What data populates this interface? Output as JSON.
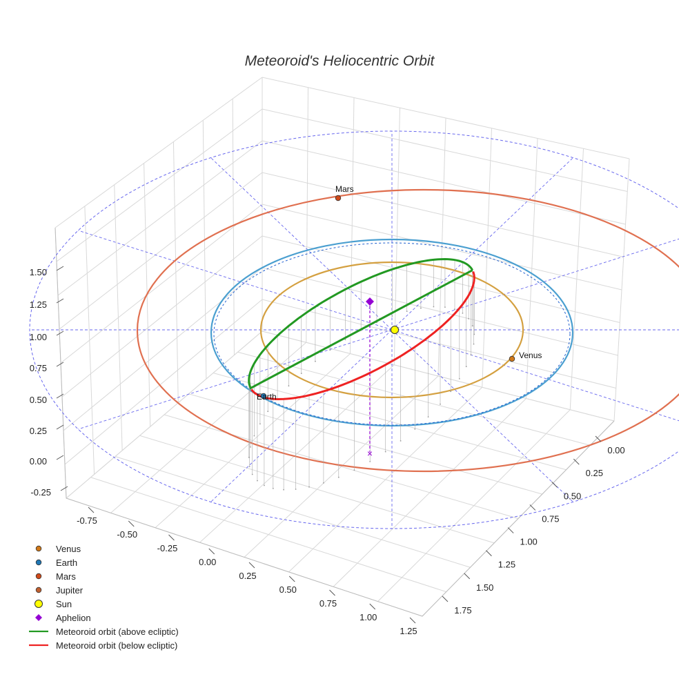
{
  "chart_data": {
    "type": "scatter3d",
    "title": "Meteoroid's Heliocentric Orbit",
    "x_ticks": [
      "-0.75",
      "-0.50",
      "-0.25",
      "0.00",
      "0.25",
      "0.50",
      "0.75",
      "1.00",
      "1.25"
    ],
    "y_ticks": [
      "0.00",
      "0.25",
      "0.50",
      "0.75",
      "1.00",
      "1.25",
      "1.50",
      "1.75"
    ],
    "z_ticks": [
      "-0.25",
      "0.00",
      "0.25",
      "0.50",
      "0.75",
      "1.00",
      "1.25",
      "1.50"
    ],
    "planet_orbits": [
      {
        "name": "Venus",
        "radius_au": 0.72,
        "color": "#d4a040"
      },
      {
        "name": "Earth",
        "radius_au": 1.0,
        "color": "#4a9fd0"
      },
      {
        "name": "Mars",
        "radius_au": 1.52,
        "color": "#e07050"
      }
    ],
    "reference_circle": {
      "color": "#6666ee",
      "style": "dashed"
    },
    "planets": [
      {
        "name": "Venus",
        "label": "Venus",
        "color": "#d07818"
      },
      {
        "name": "Earth",
        "label": "Earth",
        "color": "#1f77b4"
      },
      {
        "name": "Mars",
        "label": "Mars",
        "color": "#d04a1a"
      }
    ],
    "sun": {
      "label": "Sun",
      "color": "#ffff00"
    },
    "aphelion": {
      "label": "Aphelion",
      "color": "#9400d3"
    },
    "meteoroid_orbit": {
      "above_label": "Meteoroid orbit (above ecliptic)",
      "below_label": "Meteoroid orbit (below ecliptic)",
      "above_color": "#229922",
      "below_color": "#ee2222"
    },
    "legend": [
      {
        "label": "Venus",
        "marker": "circle",
        "color": "#d07818"
      },
      {
        "label": "Earth",
        "marker": "circle",
        "color": "#1f77b4"
      },
      {
        "label": "Mars",
        "marker": "circle",
        "color": "#d04a1a"
      },
      {
        "label": "Jupiter",
        "marker": "circle",
        "color": "#c06030"
      },
      {
        "label": "Sun",
        "marker": "circle-large",
        "color": "#ffff00"
      },
      {
        "label": "Aphelion",
        "marker": "diamond",
        "color": "#9400d3"
      },
      {
        "label": "Meteoroid orbit (above ecliptic)",
        "marker": "line",
        "color": "#229922"
      },
      {
        "label": "Meteoroid orbit (below ecliptic)",
        "marker": "line",
        "color": "#ee2222"
      }
    ]
  }
}
